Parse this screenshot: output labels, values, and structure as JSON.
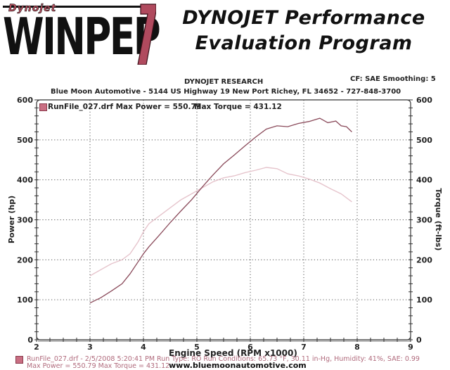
{
  "banner": {
    "brand_small": "Dynojet",
    "product": "WINPEP",
    "version": "7",
    "tagline_line1": "DYNOJET Performance",
    "tagline_line2": "Evaluation Program"
  },
  "header": {
    "company": "DYNOJET RESEARCH",
    "shop_info": "Blue Moon Automotive - 5144 US Highway 19   New Port Richey, FL 34652 - 727-848-3700",
    "correction": "CF: SAE  Smoothing: 5"
  },
  "legend": {
    "run_label": "RunFile_027.drf Max Power = 550.79",
    "torque_label": "Max Torque = 431.12"
  },
  "footer": {
    "run_details": "RunFile_027.drf - 2/5/2008 5:20:41 PM  Run Type: RO  Run Conditions: 65.73 °F, 30.11 in-Hg,  Humidity: 41%, SAE: 0.99",
    "max_values": "Max Power = 550.79  Max Torque = 431.12",
    "website": "www.bluemoonautomotive.com"
  },
  "colors": {
    "power_line": "#8a4a5a",
    "torque_line": "#e6c4cc",
    "grid": "#555555",
    "swatch": "#c96f83"
  },
  "chart_data": {
    "type": "line",
    "title": "DYNOJET RESEARCH",
    "xlabel": "Engine Speed (RPM x1000)",
    "ylabel": "Power (hp)",
    "y2label": "Torque (ft-lbs)",
    "xlim": [
      2,
      9
    ],
    "ylim": [
      0,
      600
    ],
    "y2lim": [
      0,
      600
    ],
    "xticks": [
      2,
      3,
      4,
      5,
      6,
      7,
      8,
      9
    ],
    "yticks": [
      0,
      100,
      200,
      300,
      400,
      500,
      600
    ],
    "y2ticks": [
      0,
      100,
      200,
      300,
      400,
      500,
      600
    ],
    "grid": true,
    "legend_position": "top-left",
    "series": [
      {
        "name": "Power (hp)",
        "axis": "left",
        "x": [
          3.0,
          3.2,
          3.4,
          3.6,
          3.75,
          3.9,
          4.0,
          4.1,
          4.3,
          4.5,
          4.7,
          4.9,
          5.1,
          5.3,
          5.5,
          5.7,
          5.9,
          6.1,
          6.3,
          6.5,
          6.7,
          6.9,
          7.1,
          7.3,
          7.45,
          7.6,
          7.7,
          7.8,
          7.9
        ],
        "values": [
          92,
          105,
          122,
          140,
          165,
          195,
          215,
          232,
          262,
          293,
          322,
          350,
          382,
          412,
          440,
          462,
          485,
          507,
          527,
          535,
          533,
          541,
          546,
          554,
          543,
          547,
          535,
          533,
          520
        ]
      },
      {
        "name": "Torque (ft-lbs)",
        "axis": "right",
        "x": [
          3.0,
          3.2,
          3.4,
          3.6,
          3.75,
          3.9,
          4.0,
          4.1,
          4.3,
          4.5,
          4.7,
          4.9,
          5.1,
          5.3,
          5.5,
          5.7,
          5.9,
          6.1,
          6.3,
          6.5,
          6.7,
          6.9,
          7.1,
          7.3,
          7.5,
          7.7,
          7.9
        ],
        "values": [
          160,
          175,
          190,
          200,
          215,
          245,
          270,
          290,
          310,
          330,
          350,
          365,
          380,
          395,
          405,
          410,
          418,
          424,
          431,
          428,
          415,
          410,
          402,
          392,
          378,
          365,
          345
        ]
      }
    ]
  }
}
